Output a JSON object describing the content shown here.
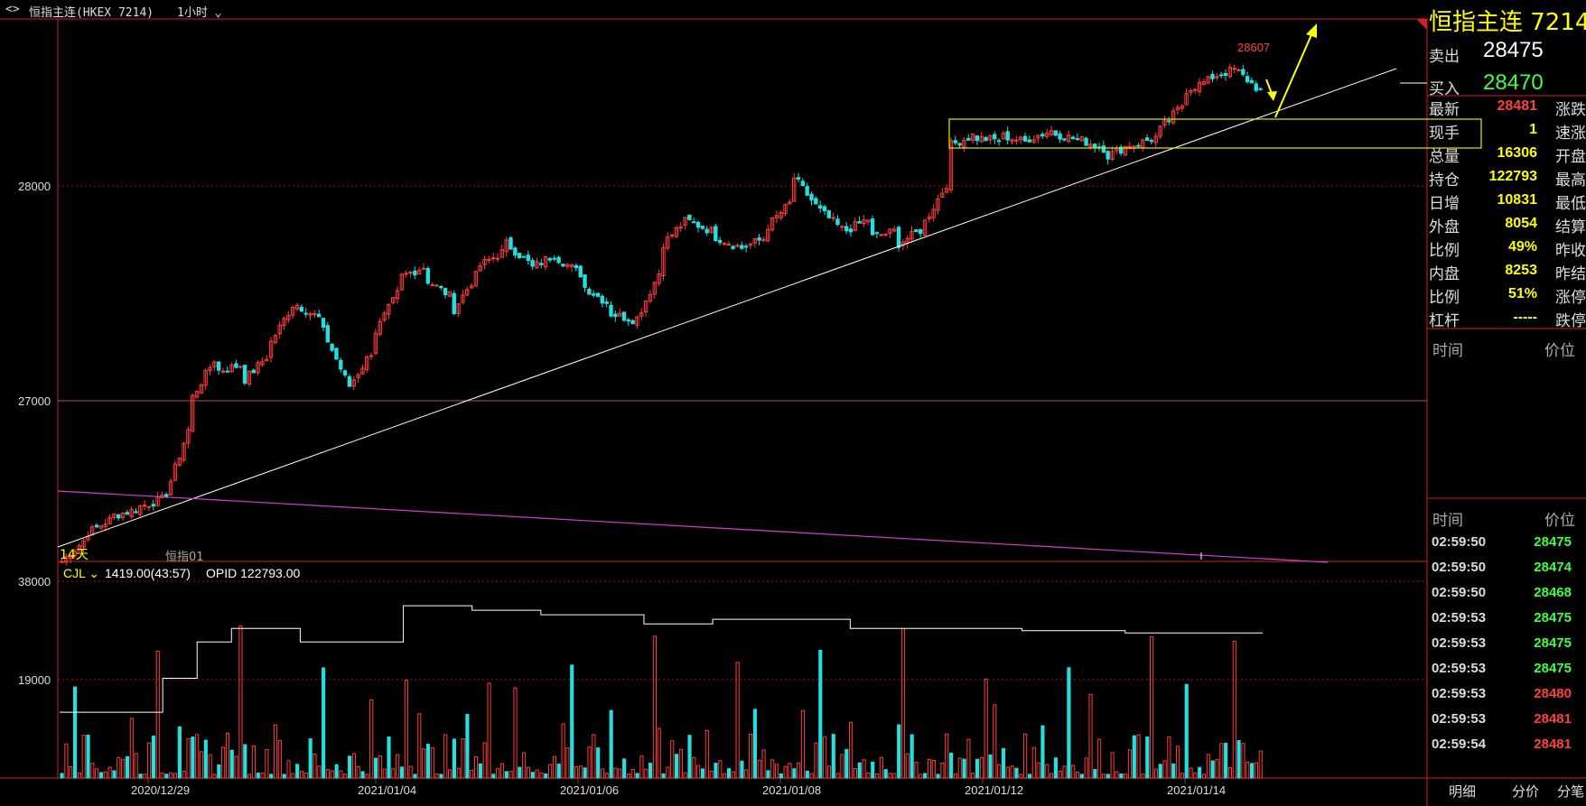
{
  "header": {
    "icon": "toggle-arrows-icon",
    "symbol": "恒指主连(HKEX 7214)",
    "period": "1小时"
  },
  "main_chart": {
    "y_ticks": [
      "28000",
      "27000"
    ],
    "high_label": "28607",
    "period_tag": "14天",
    "line_label": "恒指01"
  },
  "indicator": {
    "name": "CJL",
    "volume": "1419.00(43:57)",
    "opid": "OPID 122793.00",
    "y_ticks": [
      "38000",
      "19000"
    ]
  },
  "x_axis": [
    "2020/12/29",
    "2021/01/04",
    "2021/01/06",
    "2021/01/08",
    "2021/01/12",
    "2021/01/14"
  ],
  "right_panel": {
    "title": "恒指主连  7214",
    "sell_label": "卖出",
    "sell_price": "28475",
    "buy_label": "买入",
    "buy_price": "28470",
    "quotes": [
      {
        "label": "最新",
        "value": "28481",
        "color": "#ff4040",
        "right": "涨跌"
      },
      {
        "label": "现手",
        "value": "1",
        "color": "#ffff00",
        "right": "速涨"
      },
      {
        "label": "总量",
        "value": "16306",
        "color": "#ffff00",
        "right": "开盘"
      },
      {
        "label": "持仓",
        "value": "122793",
        "color": "#ffff00",
        "right": "最高"
      },
      {
        "label": "日增",
        "value": "10831",
        "color": "#ffff00",
        "right": "最低"
      },
      {
        "label": "外盘",
        "value": "8054",
        "color": "#ffff00",
        "right": "结算"
      },
      {
        "label": "比例",
        "value": "49%",
        "color": "#ffff00",
        "right": "昨收"
      },
      {
        "label": "内盘",
        "value": "8253",
        "color": "#ffff00",
        "right": "昨结"
      },
      {
        "label": "比例",
        "value": "51%",
        "color": "#ffff00",
        "right": "涨停"
      },
      {
        "label": "杠杆",
        "value": "-----",
        "color": "#ffff00",
        "right": "跌停"
      }
    ],
    "section1": {
      "time": "时间",
      "price": "价位"
    },
    "section2": {
      "time": "时间",
      "price": "价位"
    },
    "ticks": [
      {
        "time": "02:59:50",
        "price": "28475",
        "color": "#40ff40"
      },
      {
        "time": "02:59:50",
        "price": "28474",
        "color": "#40ff40"
      },
      {
        "time": "02:59:50",
        "price": "28468",
        "color": "#40ff40"
      },
      {
        "time": "02:59:53",
        "price": "28475",
        "color": "#40ff40"
      },
      {
        "time": "02:59:53",
        "price": "28475",
        "color": "#40ff40"
      },
      {
        "time": "02:59:53",
        "price": "28475",
        "color": "#40ff40"
      },
      {
        "time": "02:59:53",
        "price": "28480",
        "color": "#ff4040"
      },
      {
        "time": "02:59:53",
        "price": "28481",
        "color": "#ff4040"
      },
      {
        "time": "02:59:54",
        "price": "28481",
        "color": "#ff4040"
      }
    ],
    "tabs": [
      "明细",
      "分价",
      "分笔"
    ]
  },
  "chart_data": {
    "type": "candlestick",
    "price_range": [
      26350,
      28820
    ],
    "volume_range": [
      0,
      43000
    ],
    "close_path": [
      [
        26350,
        26460
      ],
      [
        26480,
        26550
      ],
      [
        26560,
        26590
      ],
      [
        26600,
        26640
      ],
      [
        26660,
        27000
      ],
      [
        27100,
        27300
      ],
      [
        27220,
        27250
      ],
      [
        27180,
        27300
      ],
      [
        27350,
        27550
      ],
      [
        27520,
        27450
      ],
      [
        27400,
        27150
      ],
      [
        27150,
        27330
      ],
      [
        27400,
        27600
      ],
      [
        27650,
        27700
      ],
      [
        27630,
        27550
      ],
      [
        27500,
        27680
      ],
      [
        27700,
        27770
      ],
      [
        27800,
        27700
      ],
      [
        27690,
        27760
      ],
      [
        27730,
        27650
      ],
      [
        27600,
        27520
      ],
      [
        27480,
        27450
      ],
      [
        27460,
        27700
      ],
      [
        27800,
        27920
      ],
      [
        27900,
        27850
      ],
      [
        27830,
        27780
      ],
      [
        27780,
        27830
      ],
      [
        27880,
        28000
      ],
      [
        28100,
        27950
      ],
      [
        27950,
        27850
      ],
      [
        27860,
        27920
      ],
      [
        27830,
        27860
      ],
      [
        27800,
        27870
      ],
      [
        27900,
        28100
      ],
      [
        28250,
        28300
      ],
      [
        28280,
        28270
      ],
      [
        28290,
        28260
      ],
      [
        28280,
        28320
      ],
      [
        28300,
        28270
      ],
      [
        28270,
        28230
      ],
      [
        28200,
        28260
      ],
      [
        28250,
        28290
      ],
      [
        28320,
        28450
      ],
      [
        28500,
        28550
      ],
      [
        28560,
        28600
      ],
      [
        28580,
        28481
      ]
    ],
    "volume_line": [
      14500,
      14500,
      14500,
      22000,
      30000,
      33000,
      33000,
      30000,
      30000,
      30000,
      38000,
      38000,
      37000,
      37000,
      36000,
      36000,
      36000,
      34000,
      34000,
      35000,
      35000,
      35000,
      35000,
      33000,
      33000,
      33000,
      33000,
      33000,
      32500,
      32500,
      32500,
      32000,
      32000,
      32000,
      32000
    ]
  }
}
